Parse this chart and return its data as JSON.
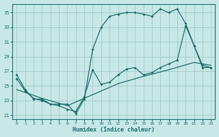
{
  "background_color": "#c8e8e8",
  "grid_color": "#a8cccc",
  "line_color": "#1a6b6b",
  "xlabel": "Humidex (Indice chaleur)",
  "xlim": [
    -0.5,
    23.5
  ],
  "ylim": [
    20.5,
    36.2
  ],
  "xticks": [
    0,
    1,
    2,
    3,
    4,
    5,
    6,
    7,
    8,
    9,
    10,
    11,
    12,
    13,
    14,
    15,
    16,
    17,
    18,
    19,
    20,
    21,
    22,
    23
  ],
  "yticks": [
    21,
    23,
    25,
    27,
    29,
    31,
    33,
    35
  ],
  "line1_x": [
    0,
    1,
    2,
    3,
    4,
    5,
    6,
    7,
    8,
    9,
    10,
    11,
    12,
    13,
    14,
    15,
    16,
    17,
    18,
    19,
    20,
    21,
    22,
    23
  ],
  "line1_y": [
    26.5,
    24.5,
    23.2,
    23.2,
    22.5,
    22.5,
    22.5,
    21.2,
    23.2,
    30.0,
    33.0,
    34.5,
    34.8,
    35.0,
    35.0,
    34.8,
    34.5,
    35.5,
    35.0,
    35.5,
    33.5,
    30.5,
    27.5,
    27.5
  ],
  "line2_x": [
    0,
    1,
    2,
    3,
    4,
    5,
    6,
    7,
    8,
    9,
    10,
    11,
    12,
    13,
    14,
    15,
    16,
    17,
    18,
    19,
    20,
    21,
    22,
    23
  ],
  "line2_y": [
    26.0,
    24.3,
    23.3,
    23.0,
    22.5,
    22.3,
    21.8,
    21.5,
    23.5,
    27.2,
    25.2,
    25.5,
    26.5,
    27.3,
    27.5,
    26.5,
    26.8,
    27.5,
    28.0,
    28.5,
    33.2,
    30.5,
    27.8,
    27.5
  ],
  "line3_x": [
    0,
    3,
    6,
    9,
    12,
    15,
    18,
    21,
    23
  ],
  "line3_y": [
    24.5,
    23.3,
    22.3,
    23.8,
    25.3,
    26.3,
    27.2,
    28.2,
    27.8
  ]
}
